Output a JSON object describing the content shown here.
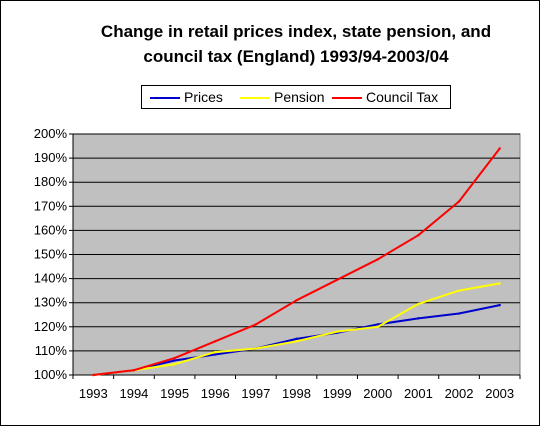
{
  "chart_data": {
    "type": "line",
    "title_line1": "Change in retail prices index, state pension, and",
    "title_line2": "council tax (England) 1993/94-2003/04",
    "categories": [
      "1993",
      "1994",
      "1995",
      "1996",
      "1997",
      "1998",
      "1999",
      "2000",
      "2001",
      "2002",
      "2003"
    ],
    "y_tick_labels": [
      "100%",
      "110%",
      "120%",
      "130%",
      "140%",
      "150%",
      "160%",
      "170%",
      "180%",
      "190%",
      "200%"
    ],
    "ylim": [
      100,
      200
    ],
    "y_step": 10,
    "grid": true,
    "legend_position": "top",
    "plot_background": "#c0c0c0",
    "series": [
      {
        "name": "Prices",
        "color": "#0000cc",
        "values": [
          100,
          102,
          106,
          108.5,
          111,
          115,
          117.5,
          121,
          123.5,
          125.5,
          129
        ]
      },
      {
        "name": "Pension",
        "color": "#ffff00",
        "values": [
          100,
          102,
          104.5,
          109.5,
          111,
          114,
          118,
          120,
          129.5,
          135,
          138
        ]
      },
      {
        "name": "Council Tax",
        "color": "#ff0000",
        "values": [
          100,
          102,
          107,
          114,
          121,
          131,
          139.5,
          148,
          158,
          172,
          194
        ]
      }
    ]
  }
}
